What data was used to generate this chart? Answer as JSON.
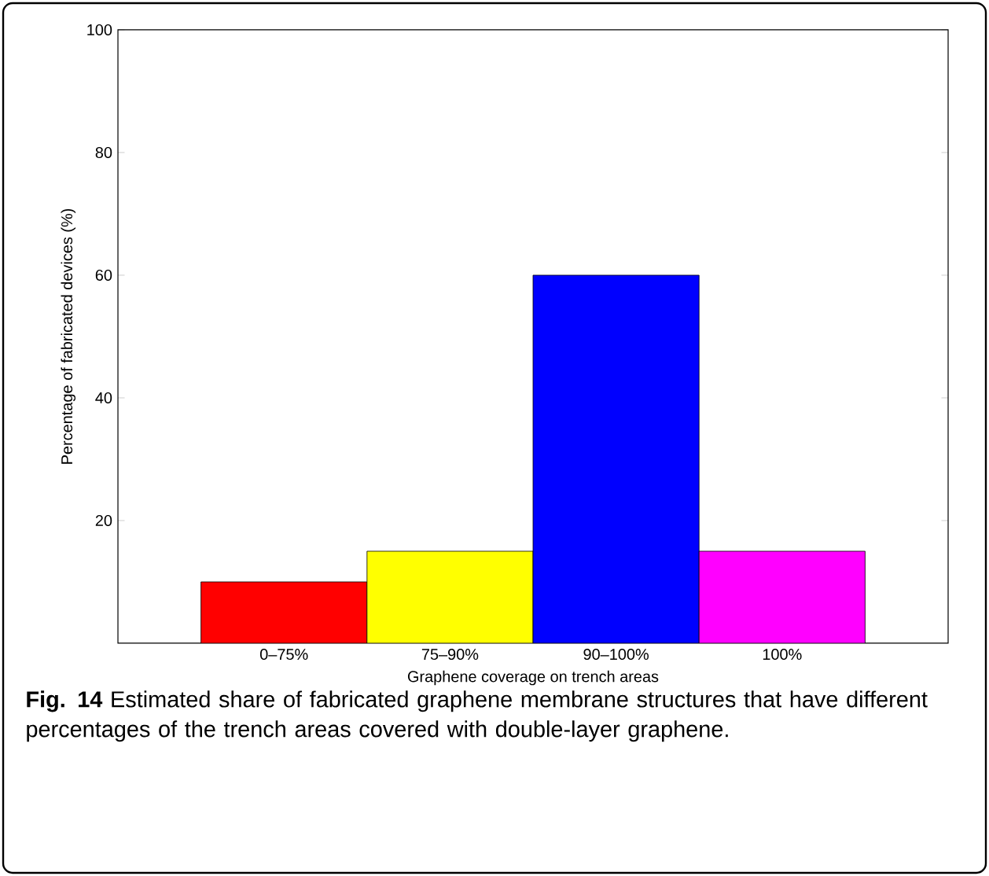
{
  "chart_data": {
    "type": "bar",
    "xlabel": "Graphene coverage on trench areas",
    "ylabel": "Percentage of fabricated devices (%)",
    "categories": [
      "0–75%",
      "75–90%",
      "90–100%",
      "100%"
    ],
    "values": [
      10,
      15,
      60,
      15
    ],
    "colors": [
      "#ff0000",
      "#ffff00",
      "#0000ff",
      "#ff00ff"
    ],
    "ylim": [
      0,
      100
    ],
    "yticks": [
      20,
      40,
      60,
      80,
      100
    ],
    "grid": false,
    "annotations": [
      "**Fig. 14** Estimated share of fabricated graphene membrane structures that have different percentages of the trench areas covered with double-layer graphene."
    ]
  }
}
